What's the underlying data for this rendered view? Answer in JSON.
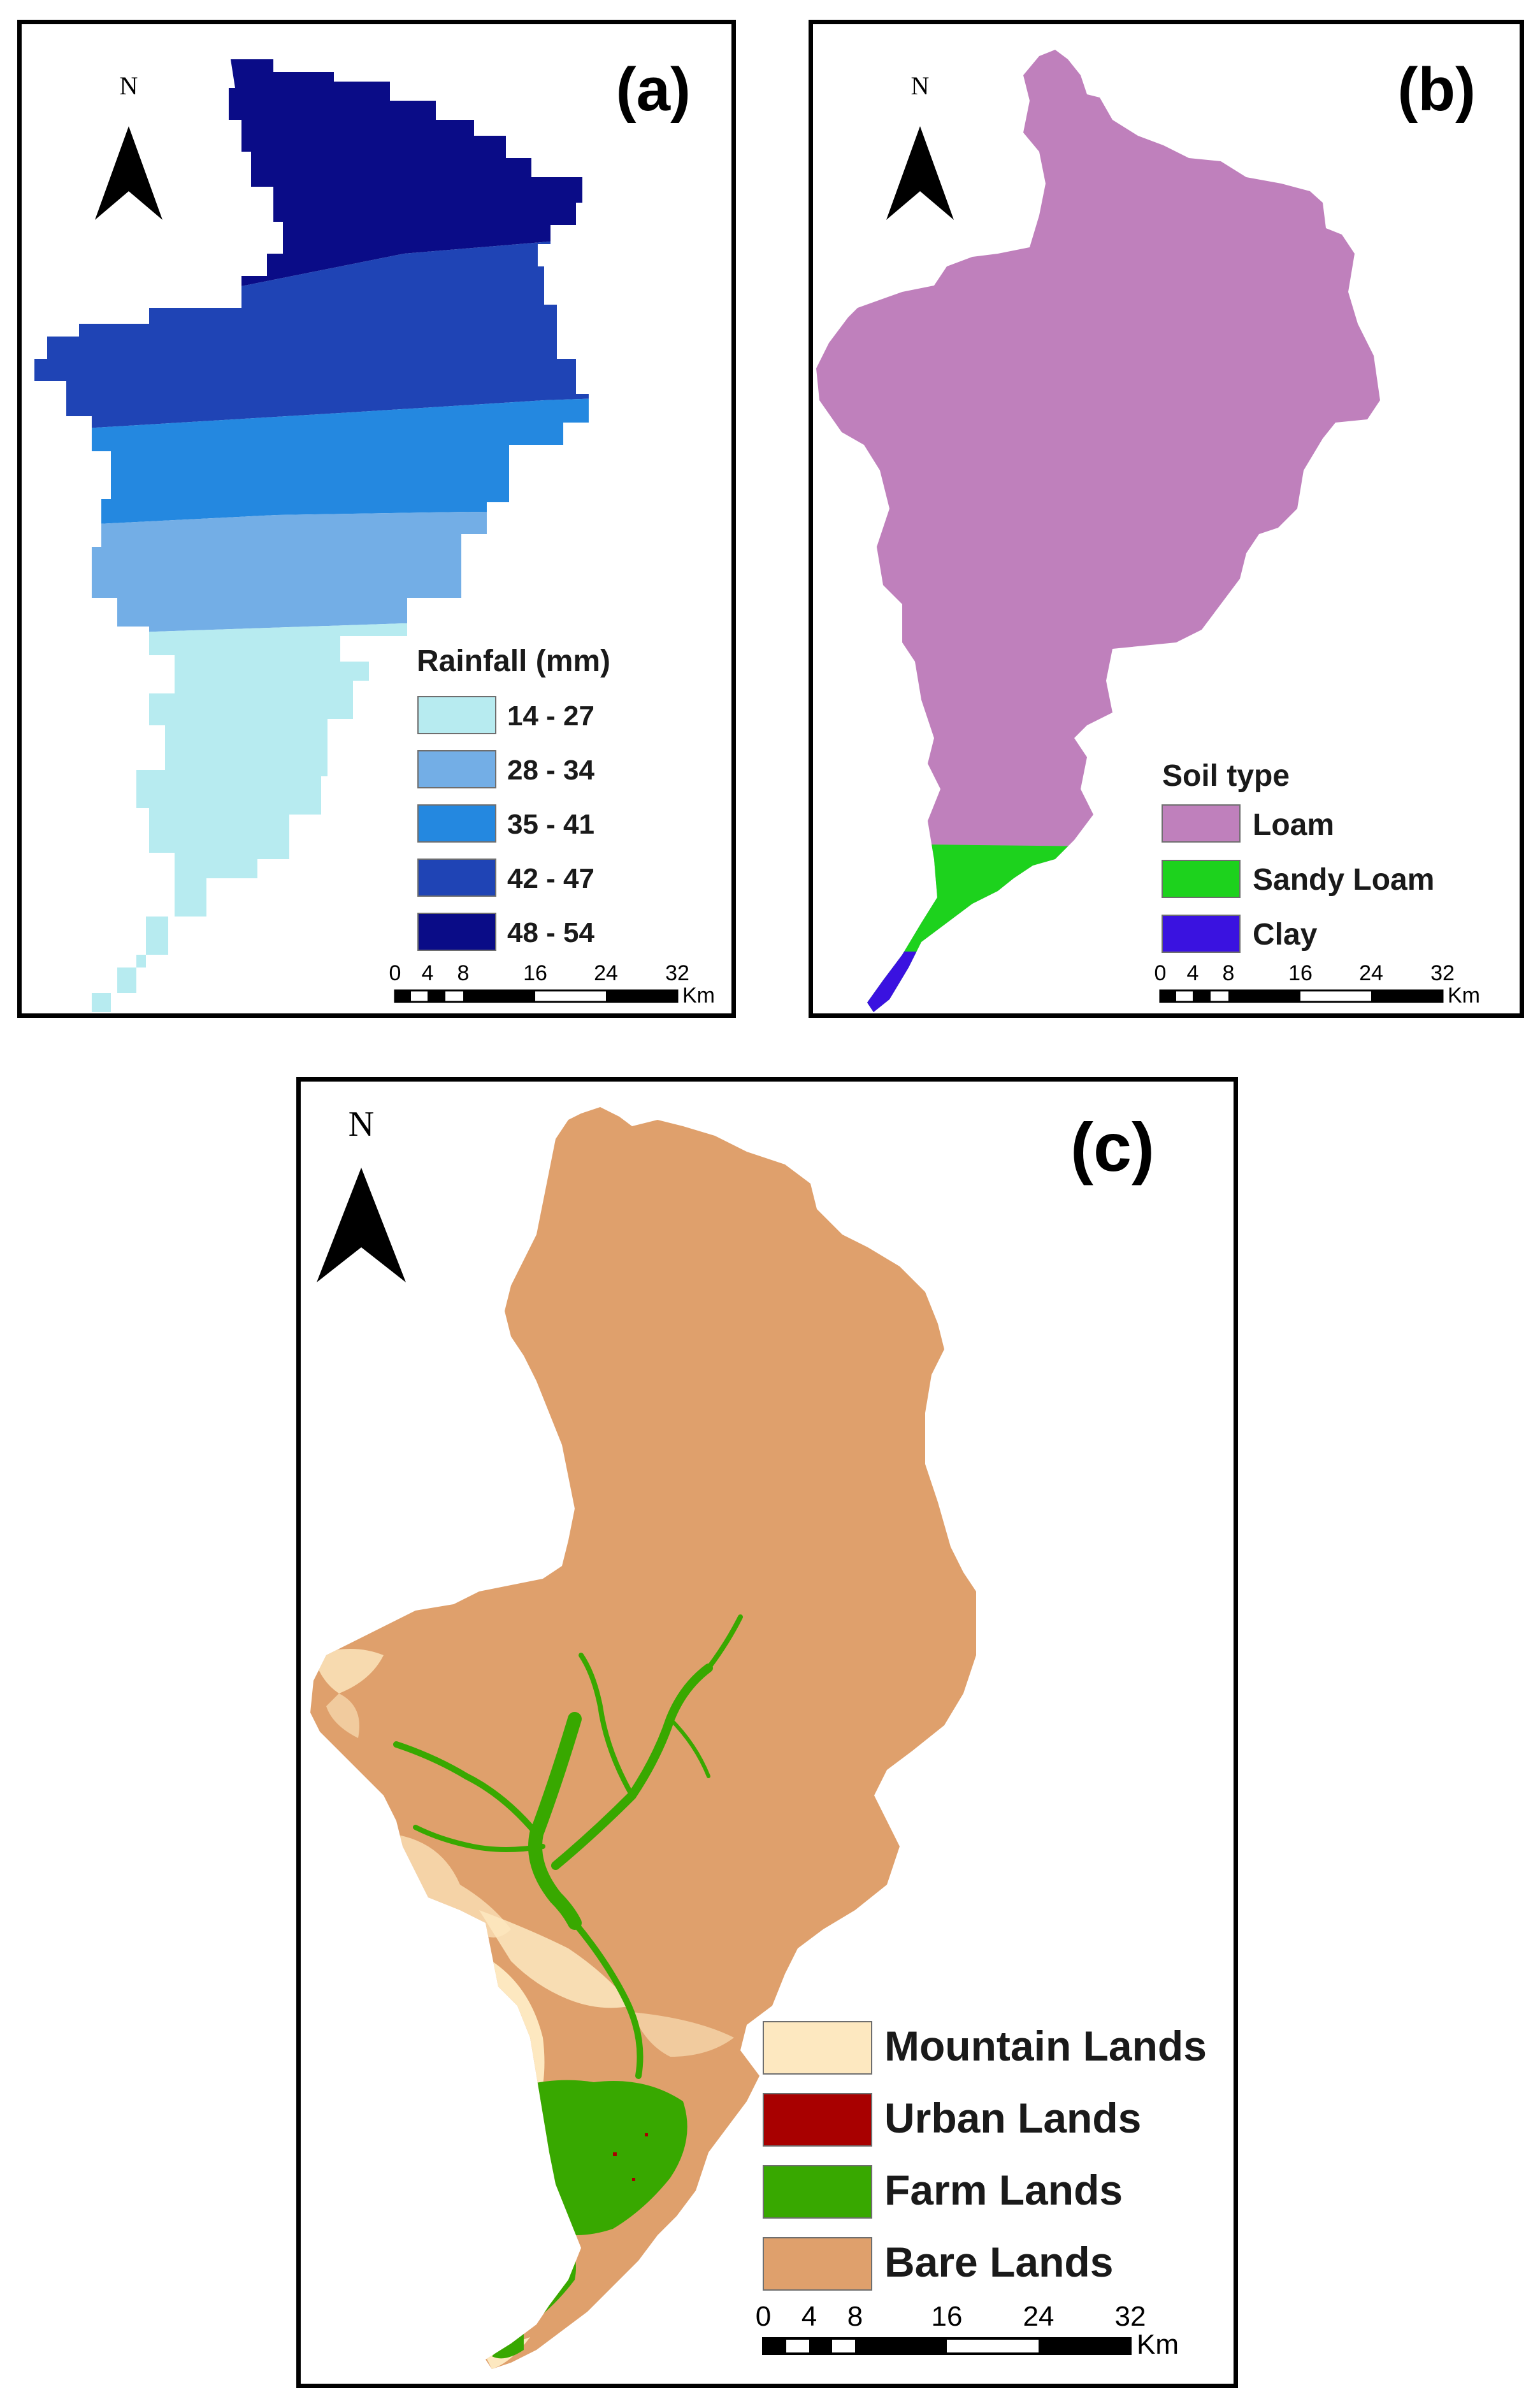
{
  "panels": {
    "a": {
      "label": "(a)",
      "north": "N",
      "legend_title": "Rainfall (mm)",
      "legend": [
        {
          "label": "14 - 27",
          "color": "#B7EBF0"
        },
        {
          "label": "28 - 34",
          "color": "#73AEE6"
        },
        {
          "label": "35 - 41",
          "color": "#2488E0"
        },
        {
          "label": "42 - 47",
          "color": "#1F44B5"
        },
        {
          "label": "48 - 54",
          "color": "#0A0C87"
        }
      ],
      "scale": {
        "ticks": [
          "0",
          "4",
          "8",
          "16",
          "24",
          "32"
        ],
        "unit": "Km"
      }
    },
    "b": {
      "label": "(b)",
      "north": "N",
      "legend_title": "Soil type",
      "legend": [
        {
          "label": "Loam",
          "color": "#BF80BC"
        },
        {
          "label": "Sandy Loam",
          "color": "#1DD21D"
        },
        {
          "label": "Clay",
          "color": "#3A12E0"
        }
      ],
      "scale": {
        "ticks": [
          "0",
          "4",
          "8",
          "16",
          "24",
          "32"
        ],
        "unit": "Km"
      }
    },
    "c": {
      "label": "(c)",
      "north": "N",
      "legend": [
        {
          "label": "Mountain Lands",
          "color": "#FDE8C0"
        },
        {
          "label": "Urban Lands",
          "color": "#A80000"
        },
        {
          "label": "Farm Lands",
          "color": "#38A800"
        },
        {
          "label": "Bare Lands",
          "color": "#DFA06C"
        }
      ],
      "scale": {
        "ticks": [
          "0",
          "4",
          "8",
          "16",
          "24",
          "32"
        ],
        "unit": "Km"
      }
    }
  }
}
